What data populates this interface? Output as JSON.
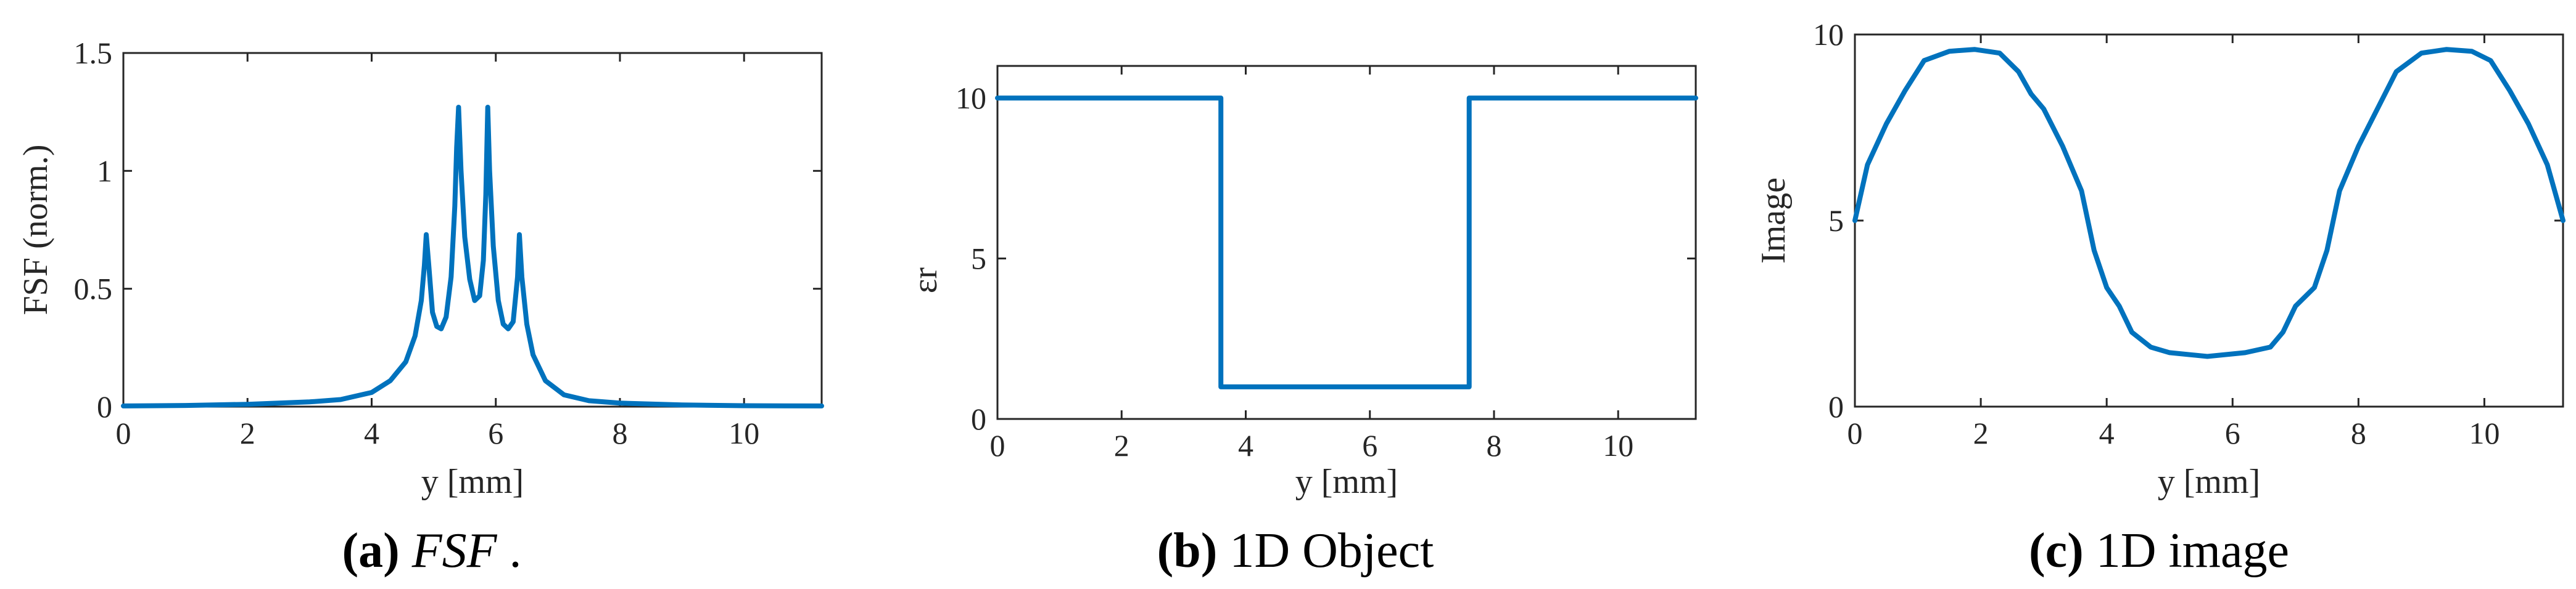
{
  "colors": {
    "line": "#0072BD",
    "axis": "#262626"
  },
  "chart_data": [
    {
      "type": "line",
      "title": "",
      "xlabel": "y [mm]",
      "ylabel": "FSF (norm.)",
      "xlim": [
        0,
        11.25
      ],
      "ylim": [
        0,
        1.5
      ],
      "xticks": [
        "0",
        "2",
        "4",
        "6",
        "8",
        "10"
      ],
      "yticks": [
        "0",
        "0.5",
        "1",
        "1.5"
      ],
      "caption": {
        "letter": "(a)",
        "text": "FSF",
        "suffix": "."
      },
      "series": [
        {
          "x": [
            0,
            1,
            2,
            3,
            3.5,
            4,
            4.3,
            4.55,
            4.7,
            4.8,
            4.85,
            4.88,
            4.92,
            4.98,
            5.05,
            5.12,
            5.2,
            5.28,
            5.34,
            5.37,
            5.4,
            5.44,
            5.5,
            5.58,
            5.66,
            5.74,
            5.8,
            5.84,
            5.87,
            5.9,
            5.96,
            6.04,
            6.12,
            6.2,
            6.28,
            6.35,
            6.38,
            6.42,
            6.5,
            6.6,
            6.8,
            7.1,
            7.5,
            8,
            9,
            10,
            11.25
          ],
          "y": [
            0.003,
            0.005,
            0.01,
            0.02,
            0.03,
            0.06,
            0.11,
            0.19,
            0.3,
            0.45,
            0.6,
            0.73,
            0.6,
            0.4,
            0.34,
            0.33,
            0.38,
            0.55,
            0.85,
            1.1,
            1.27,
            1.0,
            0.72,
            0.54,
            0.45,
            0.47,
            0.62,
            0.9,
            1.27,
            1.0,
            0.68,
            0.45,
            0.35,
            0.33,
            0.36,
            0.55,
            0.73,
            0.55,
            0.35,
            0.22,
            0.11,
            0.05,
            0.025,
            0.015,
            0.007,
            0.004,
            0.003
          ]
        }
      ]
    },
    {
      "type": "line",
      "title": "",
      "xlabel": "y [mm]",
      "ylabel": "εr",
      "xlim": [
        0,
        11.25
      ],
      "ylim": [
        0,
        11
      ],
      "xticks": [
        "0",
        "2",
        "4",
        "6",
        "8",
        "10"
      ],
      "yticks": [
        "0",
        "5",
        "10"
      ],
      "caption": {
        "letter": "(b)",
        "text": "1D Object"
      },
      "series": [
        {
          "x": [
            0,
            3.6,
            3.6,
            7.6,
            7.6,
            11.25
          ],
          "y": [
            10,
            10,
            1,
            1,
            10,
            10
          ]
        }
      ]
    },
    {
      "type": "line",
      "title": "",
      "xlabel": "y [mm]",
      "ylabel": "Image",
      "xlim": [
        0,
        11.25
      ],
      "ylim": [
        0,
        10
      ],
      "xticks": [
        "0",
        "2",
        "4",
        "6",
        "8",
        "10"
      ],
      "yticks": [
        "0",
        "5",
        "10"
      ],
      "caption": {
        "letter": "(c)",
        "text": "1D image"
      },
      "series": [
        {
          "x": [
            0,
            0.2,
            0.5,
            0.8,
            1.1,
            1.5,
            1.9,
            2.3,
            2.6,
            2.8,
            3.0,
            3.3,
            3.6,
            3.8,
            4.0,
            4.2,
            4.4,
            4.7,
            5.0,
            5.6,
            6.2,
            6.6,
            6.8,
            7.0,
            7.3,
            7.5,
            7.7,
            8.0,
            8.3,
            8.6,
            9.0,
            9.4,
            9.8,
            10.1,
            10.4,
            10.7,
            11.0,
            11.25
          ],
          "y": [
            5.0,
            6.5,
            7.6,
            8.5,
            9.3,
            9.55,
            9.6,
            9.5,
            9.0,
            8.4,
            8.0,
            7.0,
            5.8,
            4.2,
            3.2,
            2.7,
            2.0,
            1.6,
            1.45,
            1.35,
            1.45,
            1.6,
            2.0,
            2.7,
            3.2,
            4.2,
            5.8,
            7.0,
            8.0,
            9.0,
            9.5,
            9.6,
            9.55,
            9.3,
            8.5,
            7.6,
            6.5,
            5.0
          ]
        }
      ]
    }
  ]
}
